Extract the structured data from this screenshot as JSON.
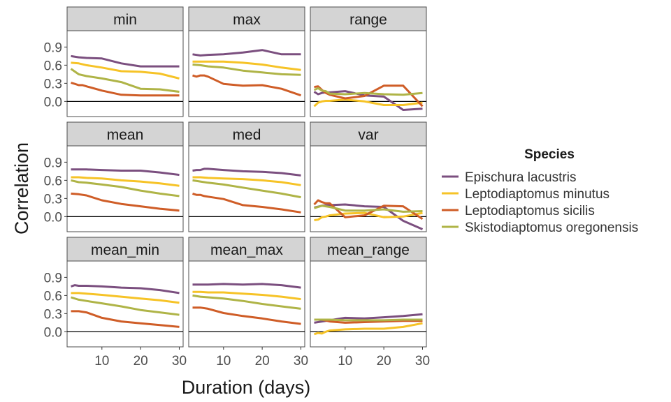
{
  "chart_data": {
    "type": "line",
    "facet_layout": "3x3 grid",
    "xlabel": "Duration (days)",
    "ylabel": "Correlation",
    "xlim": [
      1,
      31
    ],
    "ylim": [
      -0.25,
      1.17
    ],
    "x_ticks": [
      10,
      20,
      30
    ],
    "y_ticks": [
      "0.0",
      "0.3",
      "0.6",
      "0.9"
    ],
    "reference_line_y": 0,
    "grid": false,
    "legend": {
      "title": "Species",
      "placement": "right",
      "entries": [
        "Epischura lacustris",
        "Leptodiaptomus minutus",
        "Leptodiaptomus sicilis",
        "Skistodiaptomus oregonensis"
      ]
    },
    "colors": {
      "Epischura lacustris": "#7b4f7f",
      "Leptodiaptomus minutus": "#f6c327",
      "Leptodiaptomus sicilis": "#cf5d27",
      "Skistodiaptomus oregonensis": "#afb447",
      "strip_fill": "#d4d4d4",
      "panel_border": "#4d4d4d",
      "zero_line": "#000000"
    },
    "panels": [
      {
        "title": "min",
        "series": [
          {
            "name": "Epischura lacustris",
            "x": [
              2,
              4,
              6,
              10,
              15,
              20,
              25,
              30
            ],
            "y": [
              0.75,
              0.73,
              0.72,
              0.71,
              0.63,
              0.58,
              0.58,
              0.58
            ]
          },
          {
            "name": "Leptodiaptomus minutus",
            "x": [
              2,
              4,
              6,
              10,
              15,
              20,
              25,
              30
            ],
            "y": [
              0.64,
              0.63,
              0.6,
              0.56,
              0.5,
              0.49,
              0.46,
              0.38
            ]
          },
          {
            "name": "Leptodiaptomus sicilis",
            "x": [
              2,
              3,
              4,
              5,
              6,
              10,
              15,
              20,
              25,
              30
            ],
            "y": [
              0.31,
              0.29,
              0.27,
              0.27,
              0.25,
              0.18,
              0.11,
              0.1,
              0.1,
              0.1
            ]
          },
          {
            "name": "Skistodiaptomus oregonensis",
            "x": [
              2,
              4,
              6,
              10,
              15,
              20,
              25,
              30
            ],
            "y": [
              0.54,
              0.45,
              0.42,
              0.38,
              0.32,
              0.21,
              0.2,
              0.16
            ]
          }
        ]
      },
      {
        "title": "max",
        "series": [
          {
            "name": "Epischura lacustris",
            "x": [
              2,
              4,
              6,
              10,
              15,
              20,
              25,
              30
            ],
            "y": [
              0.78,
              0.76,
              0.77,
              0.78,
              0.81,
              0.85,
              0.78,
              0.78
            ]
          },
          {
            "name": "Leptodiaptomus minutus",
            "x": [
              2,
              4,
              6,
              10,
              15,
              20,
              25,
              30
            ],
            "y": [
              0.66,
              0.66,
              0.66,
              0.66,
              0.64,
              0.61,
              0.56,
              0.52
            ]
          },
          {
            "name": "Leptodiaptomus sicilis",
            "x": [
              2,
              3,
              4,
              5,
              6,
              10,
              15,
              20,
              25,
              30
            ],
            "y": [
              0.43,
              0.41,
              0.43,
              0.43,
              0.41,
              0.29,
              0.26,
              0.27,
              0.21,
              0.1
            ]
          },
          {
            "name": "Skistodiaptomus oregonensis",
            "x": [
              2,
              4,
              6,
              10,
              15,
              20,
              25,
              30
            ],
            "y": [
              0.61,
              0.6,
              0.58,
              0.56,
              0.51,
              0.48,
              0.45,
              0.44
            ]
          }
        ]
      },
      {
        "title": "range",
        "series": [
          {
            "name": "Epischura lacustris",
            "x": [
              2,
              3,
              4,
              5,
              6,
              10,
              15,
              20,
              25,
              30
            ],
            "y": [
              0.16,
              0.12,
              0.14,
              0.15,
              0.15,
              0.17,
              0.1,
              0.08,
              -0.14,
              -0.12
            ]
          },
          {
            "name": "Leptodiaptomus minutus",
            "x": [
              2,
              3,
              4,
              5,
              6,
              10,
              15,
              20,
              25,
              30
            ],
            "y": [
              -0.08,
              -0.02,
              0.0,
              0.01,
              0.01,
              0.03,
              0.0,
              -0.06,
              -0.06,
              -0.02
            ]
          },
          {
            "name": "Leptodiaptomus sicilis",
            "x": [
              2,
              3,
              4,
              5,
              6,
              10,
              15,
              20,
              25,
              30
            ],
            "y": [
              0.24,
              0.25,
              0.19,
              0.14,
              0.11,
              0.05,
              0.09,
              0.26,
              0.26,
              -0.08
            ]
          },
          {
            "name": "Skistodiaptomus oregonensis",
            "x": [
              2,
              3,
              4,
              5,
              6,
              10,
              15,
              20,
              25,
              30
            ],
            "y": [
              0.19,
              0.22,
              0.18,
              0.17,
              0.13,
              0.12,
              0.14,
              0.12,
              0.11,
              0.14
            ]
          }
        ]
      },
      {
        "title": "mean",
        "series": [
          {
            "name": "Epischura lacustris",
            "x": [
              2,
              4,
              6,
              10,
              15,
              20,
              25,
              30
            ],
            "y": [
              0.78,
              0.78,
              0.78,
              0.77,
              0.76,
              0.76,
              0.73,
              0.69
            ]
          },
          {
            "name": "Leptodiaptomus minutus",
            "x": [
              2,
              4,
              6,
              10,
              15,
              20,
              25,
              30
            ],
            "y": [
              0.65,
              0.65,
              0.64,
              0.63,
              0.6,
              0.58,
              0.55,
              0.51
            ]
          },
          {
            "name": "Leptodiaptomus sicilis",
            "x": [
              2,
              4,
              6,
              10,
              15,
              20,
              25,
              30
            ],
            "y": [
              0.38,
              0.37,
              0.35,
              0.27,
              0.21,
              0.17,
              0.13,
              0.1
            ]
          },
          {
            "name": "Skistodiaptomus oregonensis",
            "x": [
              2,
              4,
              6,
              10,
              15,
              20,
              25,
              30
            ],
            "y": [
              0.6,
              0.57,
              0.56,
              0.53,
              0.49,
              0.43,
              0.38,
              0.34
            ]
          }
        ]
      },
      {
        "title": "med",
        "series": [
          {
            "name": "Epischura lacustris",
            "x": [
              2,
              3,
              4,
              5,
              6,
              10,
              15,
              20,
              25,
              30
            ],
            "y": [
              0.76,
              0.77,
              0.77,
              0.79,
              0.79,
              0.77,
              0.75,
              0.74,
              0.72,
              0.68
            ]
          },
          {
            "name": "Leptodiaptomus minutus",
            "x": [
              2,
              4,
              6,
              10,
              15,
              20,
              25,
              30
            ],
            "y": [
              0.65,
              0.65,
              0.64,
              0.63,
              0.62,
              0.6,
              0.57,
              0.52
            ]
          },
          {
            "name": "Leptodiaptomus sicilis",
            "x": [
              2,
              3,
              4,
              5,
              6,
              10,
              15,
              20,
              25,
              30
            ],
            "y": [
              0.38,
              0.36,
              0.36,
              0.34,
              0.33,
              0.29,
              0.19,
              0.16,
              0.12,
              0.07
            ]
          },
          {
            "name": "Skistodiaptomus oregonensis",
            "x": [
              2,
              4,
              6,
              10,
              15,
              20,
              25,
              30
            ],
            "y": [
              0.6,
              0.58,
              0.56,
              0.53,
              0.48,
              0.43,
              0.38,
              0.32
            ]
          }
        ]
      },
      {
        "title": "var",
        "series": [
          {
            "name": "Epischura lacustris",
            "x": [
              2,
              4,
              6,
              10,
              15,
              20,
              25,
              30
            ],
            "y": [
              0.15,
              0.18,
              0.19,
              0.2,
              0.17,
              0.16,
              -0.07,
              -0.21
            ]
          },
          {
            "name": "Leptodiaptomus minutus",
            "x": [
              2,
              3,
              4,
              5,
              6,
              10,
              15,
              20,
              25,
              30
            ],
            "y": [
              -0.06,
              -0.05,
              -0.01,
              0.0,
              0.02,
              0.05,
              0.06,
              -0.01,
              0.0,
              0.06
            ]
          },
          {
            "name": "Leptodiaptomus sicilis",
            "x": [
              2,
              3,
              4,
              5,
              6,
              10,
              15,
              20,
              25,
              30
            ],
            "y": [
              0.2,
              0.27,
              0.24,
              0.22,
              0.22,
              -0.01,
              0.02,
              0.18,
              0.17,
              -0.04
            ]
          },
          {
            "name": "Skistodiaptomus oregonensis",
            "x": [
              2,
              4,
              6,
              10,
              15,
              20,
              25,
              30
            ],
            "y": [
              0.14,
              0.18,
              0.16,
              0.1,
              0.1,
              0.12,
              0.08,
              0.09
            ]
          }
        ]
      },
      {
        "title": "mean_min",
        "series": [
          {
            "name": "Epischura lacustris",
            "x": [
              2,
              3,
              4,
              6,
              10,
              15,
              20,
              25,
              30
            ],
            "y": [
              0.75,
              0.77,
              0.76,
              0.76,
              0.75,
              0.73,
              0.72,
              0.69,
              0.64
            ]
          },
          {
            "name": "Leptodiaptomus minutus",
            "x": [
              2,
              4,
              6,
              10,
              15,
              20,
              25,
              30
            ],
            "y": [
              0.64,
              0.64,
              0.63,
              0.61,
              0.58,
              0.55,
              0.52,
              0.48
            ]
          },
          {
            "name": "Leptodiaptomus sicilis",
            "x": [
              2,
              4,
              6,
              10,
              15,
              20,
              25,
              30
            ],
            "y": [
              0.34,
              0.34,
              0.32,
              0.23,
              0.17,
              0.14,
              0.11,
              0.08
            ]
          },
          {
            "name": "Skistodiaptomus oregonensis",
            "x": [
              2,
              4,
              6,
              10,
              15,
              20,
              25,
              30
            ],
            "y": [
              0.57,
              0.53,
              0.51,
              0.47,
              0.42,
              0.36,
              0.32,
              0.28
            ]
          }
        ]
      },
      {
        "title": "mean_max",
        "series": [
          {
            "name": "Epischura lacustris",
            "x": [
              2,
              4,
              6,
              10,
              15,
              20,
              25,
              30
            ],
            "y": [
              0.78,
              0.78,
              0.78,
              0.79,
              0.78,
              0.79,
              0.77,
              0.73
            ]
          },
          {
            "name": "Leptodiaptomus minutus",
            "x": [
              2,
              4,
              6,
              10,
              15,
              20,
              25,
              30
            ],
            "y": [
              0.66,
              0.66,
              0.65,
              0.65,
              0.63,
              0.61,
              0.58,
              0.54
            ]
          },
          {
            "name": "Leptodiaptomus sicilis",
            "x": [
              2,
              4,
              6,
              10,
              15,
              20,
              25,
              30
            ],
            "y": [
              0.4,
              0.4,
              0.38,
              0.31,
              0.26,
              0.22,
              0.17,
              0.13
            ]
          },
          {
            "name": "Skistodiaptomus oregonensis",
            "x": [
              2,
              4,
              6,
              10,
              15,
              20,
              25,
              30
            ],
            "y": [
              0.6,
              0.58,
              0.57,
              0.55,
              0.51,
              0.46,
              0.42,
              0.38
            ]
          }
        ]
      },
      {
        "title": "mean_range",
        "series": [
          {
            "name": "Epischura lacustris",
            "x": [
              2,
              4,
              6,
              10,
              15,
              20,
              25,
              30
            ],
            "y": [
              0.15,
              0.17,
              0.19,
              0.23,
              0.22,
              0.24,
              0.26,
              0.29
            ]
          },
          {
            "name": "Leptodiaptomus minutus",
            "x": [
              2,
              3,
              4,
              5,
              6,
              10,
              15,
              20,
              25,
              30
            ],
            "y": [
              -0.04,
              -0.02,
              -0.03,
              0.0,
              0.02,
              0.04,
              0.05,
              0.05,
              0.08,
              0.14
            ]
          },
          {
            "name": "Leptodiaptomus sicilis",
            "x": [
              2,
              4,
              6,
              10,
              15,
              20,
              25,
              30
            ],
            "y": [
              0.2,
              0.2,
              0.17,
              0.15,
              0.16,
              0.17,
              0.18,
              0.18
            ]
          },
          {
            "name": "Skistodiaptomus oregonensis",
            "x": [
              2,
              4,
              6,
              10,
              15,
              20,
              25,
              30
            ],
            "y": [
              0.2,
              0.2,
              0.2,
              0.19,
              0.19,
              0.19,
              0.2,
              0.2
            ]
          }
        ]
      }
    ]
  }
}
